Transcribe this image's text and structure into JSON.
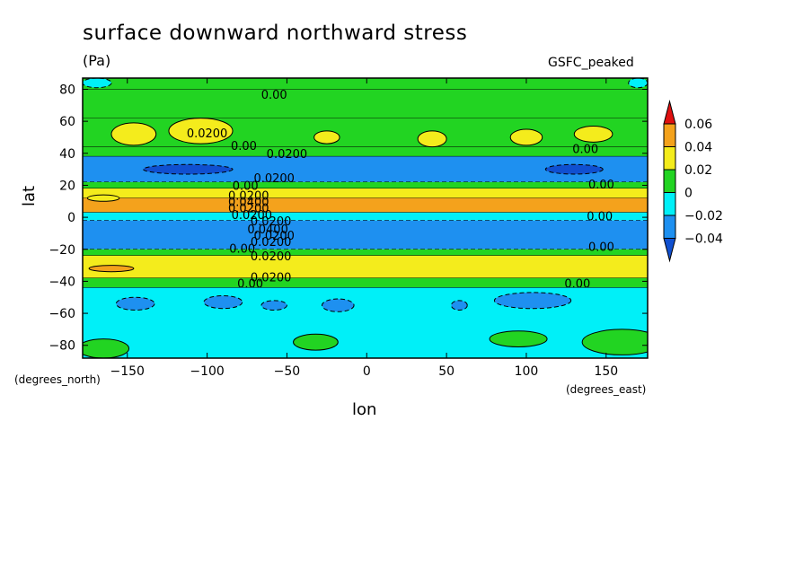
{
  "chart_data": {
    "type": "heatmap",
    "title": "surface downward northward stress",
    "units": "(Pa)",
    "source_label": "GSFC_peaked",
    "xlabel": "lon",
    "ylabel": "lat",
    "x_units": "(degrees_east)",
    "y_units": "(degrees_north)",
    "xlim": [
      -178,
      176
    ],
    "ylim": [
      -88,
      87
    ],
    "x_ticks": [
      -150,
      -100,
      -50,
      0,
      50,
      100,
      150
    ],
    "y_ticks": [
      80,
      60,
      40,
      20,
      0,
      -20,
      -40,
      -60,
      -80
    ],
    "x_tick_labels": [
      "−150",
      "−100",
      "−50",
      "0",
      "50",
      "100",
      "150"
    ],
    "y_tick_labels": [
      "80",
      "60",
      "40",
      "20",
      "0",
      "−20",
      "−40",
      "−60",
      "−80"
    ],
    "colorbar": {
      "levels": [
        0.06,
        0.04,
        0.02,
        0,
        -0.02,
        -0.04
      ],
      "labels": [
        "0.06",
        "0.04",
        "0.02",
        "0",
        "−0.02",
        "−0.04"
      ],
      "colors": [
        "#e01010",
        "#f4a21c",
        "#f4ec1c",
        "#22d422",
        "#00f0f8",
        "#1e90f0",
        "#1050d0"
      ]
    },
    "zonal_bands": [
      {
        "lat_from": 87,
        "lat_to": 80,
        "value": 0.005
      },
      {
        "lat_from": 80,
        "lat_to": 62,
        "value": 0.012
      },
      {
        "lat_from": 62,
        "lat_to": 44,
        "value": 0.015
      },
      {
        "lat_from": 44,
        "lat_to": 38,
        "value": 0.004
      },
      {
        "lat_from": 38,
        "lat_to": 22,
        "value": -0.03
      },
      {
        "lat_from": 22,
        "lat_to": 18,
        "value": 0.012
      },
      {
        "lat_from": 18,
        "lat_to": 12,
        "value": 0.03
      },
      {
        "lat_from": 12,
        "lat_to": 3,
        "value": 0.045
      },
      {
        "lat_from": 3,
        "lat_to": -2,
        "value": -0.01
      },
      {
        "lat_from": -2,
        "lat_to": -20,
        "value": -0.035
      },
      {
        "lat_from": -20,
        "lat_to": -24,
        "value": 0.01
      },
      {
        "lat_from": -24,
        "lat_to": -38,
        "value": 0.03
      },
      {
        "lat_from": -38,
        "lat_to": -44,
        "value": 0.012
      },
      {
        "lat_from": -44,
        "lat_to": -88,
        "value": -0.012
      }
    ],
    "local_features": [
      {
        "lon": -146,
        "lat": 52,
        "dlon": 14,
        "dlat": 7,
        "value": 0.03
      },
      {
        "lon": -104,
        "lat": 54,
        "dlon": 20,
        "dlat": 8,
        "value": 0.03
      },
      {
        "lon": -25,
        "lat": 50,
        "dlon": 8,
        "dlat": 4,
        "value": 0.03
      },
      {
        "lon": 41,
        "lat": 49,
        "dlon": 9,
        "dlat": 5,
        "value": 0.03
      },
      {
        "lon": 100,
        "lat": 50,
        "dlon": 10,
        "dlat": 5,
        "value": 0.03
      },
      {
        "lon": 142,
        "lat": 52,
        "dlon": 12,
        "dlat": 5,
        "value": 0.03
      },
      {
        "lon": -112,
        "lat": 30,
        "dlon": 28,
        "dlat": 3,
        "value": -0.045
      },
      {
        "lon": 130,
        "lat": 30,
        "dlon": 18,
        "dlat": 3,
        "value": -0.045
      },
      {
        "lon": -165,
        "lat": 12,
        "dlon": 10,
        "dlat": 2,
        "value": 0.03
      },
      {
        "lon": -160,
        "lat": -32,
        "dlon": 14,
        "dlat": 2,
        "value": 0.045
      },
      {
        "lon": -145,
        "lat": -54,
        "dlon": 12,
        "dlat": 4,
        "value": -0.03
      },
      {
        "lon": -90,
        "lat": -53,
        "dlon": 12,
        "dlat": 4,
        "value": -0.03
      },
      {
        "lon": -58,
        "lat": -55,
        "dlon": 8,
        "dlat": 3,
        "value": -0.03
      },
      {
        "lon": -18,
        "lat": -55,
        "dlon": 10,
        "dlat": 4,
        "value": -0.03
      },
      {
        "lon": 58,
        "lat": -55,
        "dlon": 5,
        "dlat": 3,
        "value": -0.03
      },
      {
        "lon": 104,
        "lat": -52,
        "dlon": 24,
        "dlat": 5,
        "value": -0.03
      },
      {
        "lon": -165,
        "lat": -82,
        "dlon": 16,
        "dlat": 6,
        "value": 0.01
      },
      {
        "lon": -32,
        "lat": -78,
        "dlon": 14,
        "dlat": 5,
        "value": 0.01
      },
      {
        "lon": 95,
        "lat": -76,
        "dlon": 18,
        "dlat": 5,
        "value": 0.01
      },
      {
        "lon": 160,
        "lat": -78,
        "dlon": 25,
        "dlat": 8,
        "value": 0.01
      },
      {
        "lon": -169,
        "lat": 84,
        "dlon": 9,
        "dlat": 3,
        "value": -0.005
      },
      {
        "lon": 170,
        "lat": 84,
        "dlon": 6,
        "dlat": 3,
        "value": -0.005
      }
    ],
    "contour_labels": [
      {
        "lon": -58,
        "lat": 76,
        "text": "0.00"
      },
      {
        "lon": -100,
        "lat": 52,
        "text": "0.0200"
      },
      {
        "lon": -77,
        "lat": 44,
        "text": "0.00"
      },
      {
        "lon": -50,
        "lat": 39,
        "text": "0.0200"
      },
      {
        "lon": 137,
        "lat": 42,
        "text": "0.00"
      },
      {
        "lon": -58,
        "lat": 24,
        "text": "0.0200"
      },
      {
        "lon": 147,
        "lat": 20,
        "text": "0.00"
      },
      {
        "lon": -76,
        "lat": 19,
        "text": "0.00"
      },
      {
        "lon": -74,
        "lat": 13,
        "text": "0.0200"
      },
      {
        "lon": -74,
        "lat": 9,
        "text": "0.0400"
      },
      {
        "lon": -74,
        "lat": 5,
        "text": "0.0200"
      },
      {
        "lon": -72,
        "lat": 1,
        "text": "0.0200"
      },
      {
        "lon": 146,
        "lat": 0,
        "text": "0.00"
      },
      {
        "lon": -60,
        "lat": -3,
        "text": "0.0200"
      },
      {
        "lon": -62,
        "lat": -8,
        "text": "0.0400"
      },
      {
        "lon": -58,
        "lat": -12,
        "text": "0.0200"
      },
      {
        "lon": -60,
        "lat": -16,
        "text": "0.0200"
      },
      {
        "lon": 147,
        "lat": -19,
        "text": "0.00"
      },
      {
        "lon": -78,
        "lat": -20,
        "text": "0.00"
      },
      {
        "lon": -60,
        "lat": -25,
        "text": "0.0200"
      },
      {
        "lon": -60,
        "lat": -38,
        "text": "0.0200"
      },
      {
        "lon": -73,
        "lat": -42,
        "text": "0.00"
      },
      {
        "lon": 132,
        "lat": -42,
        "text": "0.00"
      }
    ]
  }
}
